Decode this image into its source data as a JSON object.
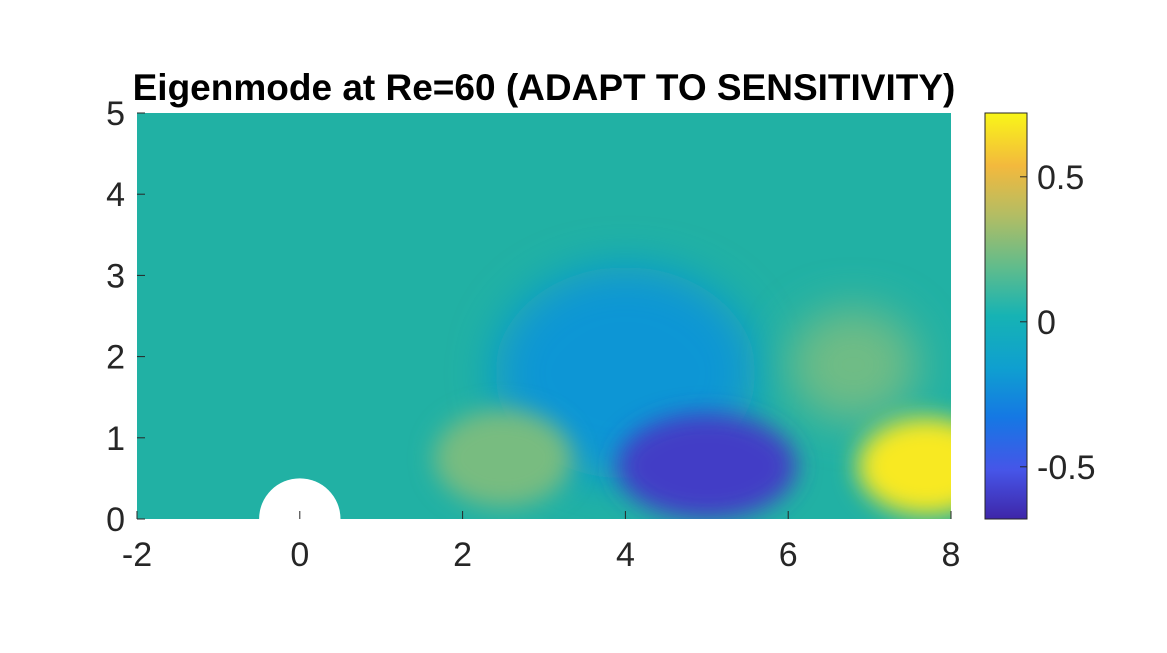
{
  "chart_data": {
    "type": "heatmap",
    "title": "Eigenmode at Re=60 (ADAPT TO SENSITIVITY)",
    "xlabel": "",
    "ylabel": "",
    "xlim": [
      -2,
      8
    ],
    "ylim": [
      0,
      5
    ],
    "x_ticks": [
      -2,
      0,
      2,
      4,
      6,
      8
    ],
    "y_ticks": [
      0,
      1,
      2,
      3,
      4,
      5
    ],
    "x_tick_labels": [
      "-2",
      "0",
      "2",
      "4",
      "6",
      "8"
    ],
    "y_tick_labels": [
      "0",
      "1",
      "2",
      "3",
      "4",
      "5"
    ],
    "colormap": "parula",
    "colorbar": {
      "limits": [
        -0.68,
        0.72
      ],
      "ticks": [
        -0.5,
        0,
        0.5
      ],
      "tick_labels": [
        "-0.5",
        "0",
        "0.5"
      ]
    },
    "obstacle": {
      "shape": "half-circle",
      "center": [
        0,
        0
      ],
      "radius": 0.5,
      "color": "#ffffff"
    },
    "features": [
      {
        "x": 2.5,
        "y": 0.75,
        "value": 0.24
      },
      {
        "x": 5.0,
        "y": 0.65,
        "value": -0.6
      },
      {
        "x": 7.7,
        "y": 0.65,
        "value": 0.68
      },
      {
        "x": 6.8,
        "y": 1.9,
        "value": 0.22
      },
      {
        "x": 4.0,
        "y": 1.8,
        "value": -0.2
      }
    ]
  }
}
